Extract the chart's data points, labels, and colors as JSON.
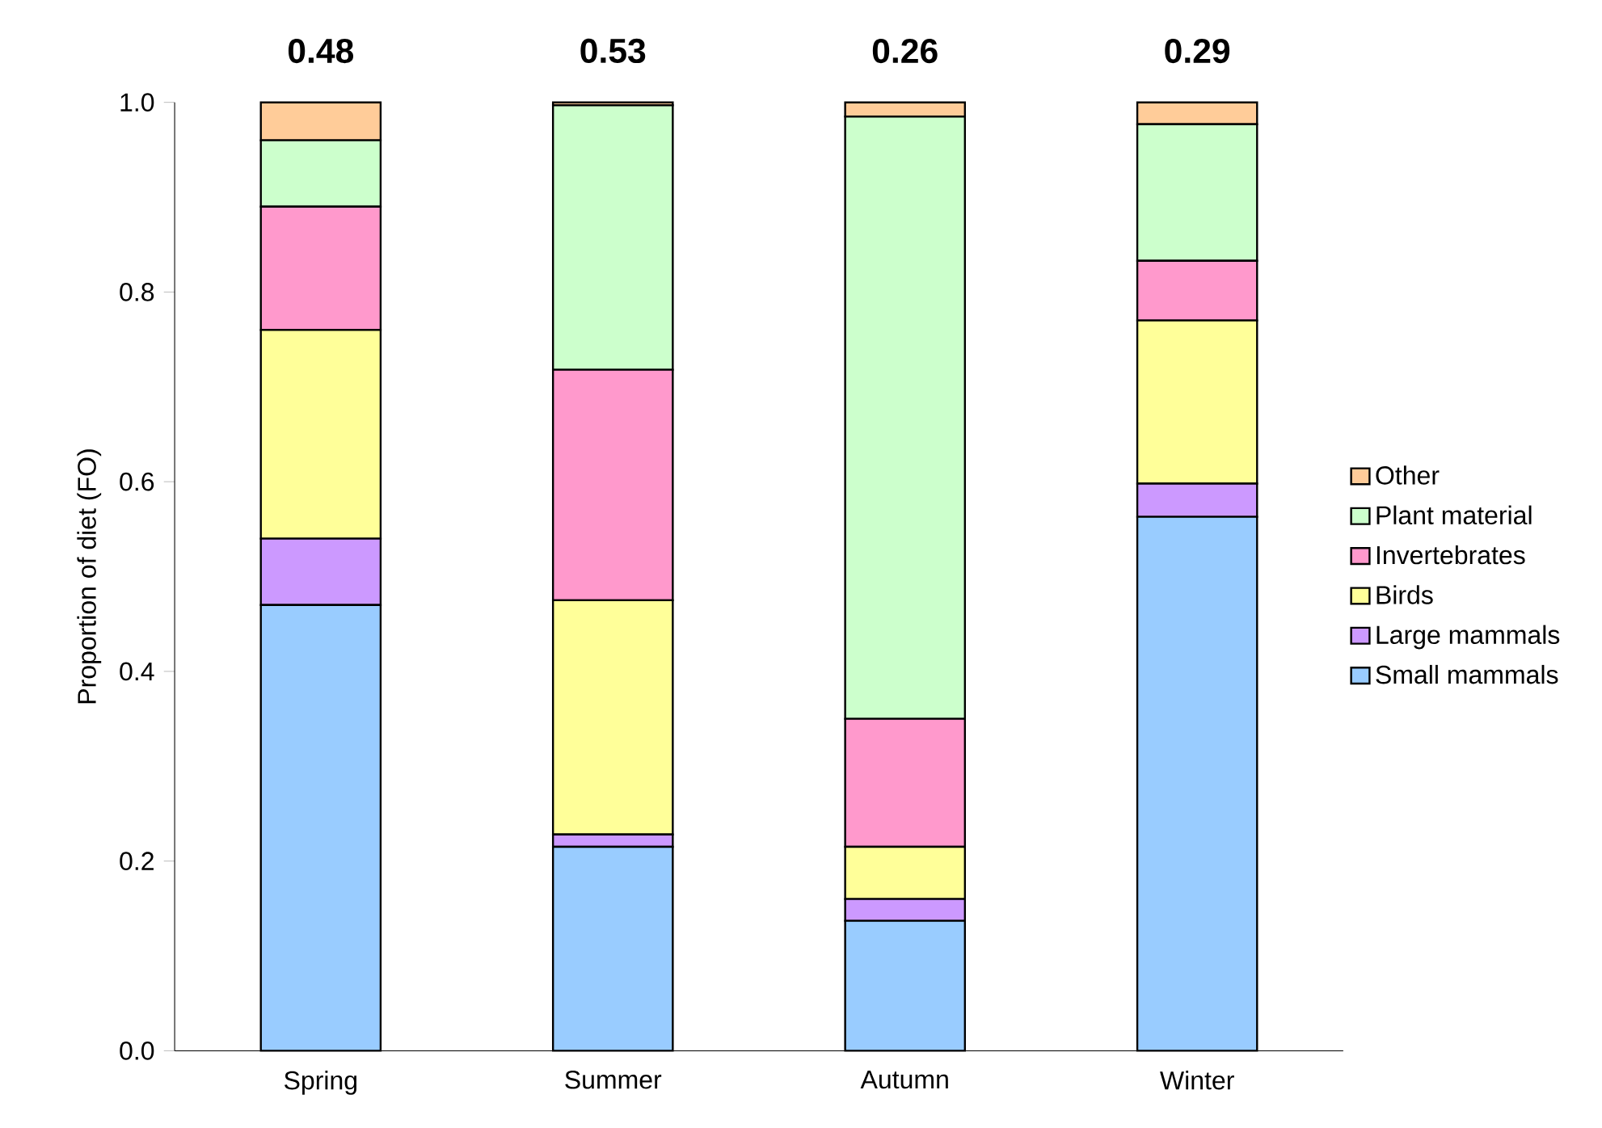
{
  "chart_data": {
    "type": "bar",
    "stacked": true,
    "categories": [
      "Spring",
      "Summer",
      "Autumn",
      "Winter"
    ],
    "ylabel": "Proportion of diet (FO)",
    "series": [
      {
        "name": "Small mammals",
        "color": "#99ccff",
        "values": [
          0.47,
          0.215,
          0.137,
          0.563
        ]
      },
      {
        "name": "Large mammals",
        "color": "#cc99ff",
        "values": [
          0.07,
          0.013,
          0.023,
          0.035
        ]
      },
      {
        "name": "Birds",
        "color": "#ffff99",
        "values": [
          0.22,
          0.247,
          0.055,
          0.172
        ]
      },
      {
        "name": "Invertebrates",
        "color": "#ff99cc",
        "values": [
          0.13,
          0.243,
          0.135,
          0.063
        ]
      },
      {
        "name": "Plant material",
        "color": "#ccffcc",
        "values": [
          0.07,
          0.279,
          0.635,
          0.144
        ]
      },
      {
        "name": "Other",
        "color": "#ffcc99",
        "values": [
          0.04,
          0.003,
          0.015,
          0.023
        ]
      }
    ],
    "ylim": [
      0,
      1
    ],
    "yticks": [
      {
        "value": 0,
        "label": "0.0"
      },
      {
        "value": 0.2,
        "label": "0.2"
      },
      {
        "value": 0.4,
        "label": "0.4"
      },
      {
        "value": 0.6,
        "label": "0.6"
      },
      {
        "value": 0.8,
        "label": "0.8"
      },
      {
        "value": 1,
        "label": "1.0"
      }
    ],
    "annotations": [
      "0.48",
      "0.53",
      "0.26",
      "0.29"
    ],
    "legend": "right",
    "grid": false
  }
}
